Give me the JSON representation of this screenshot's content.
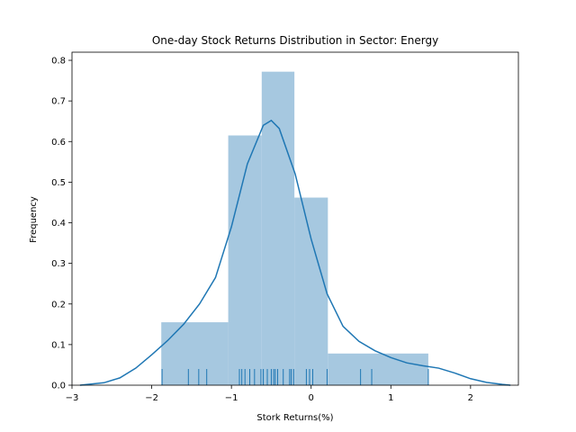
{
  "chart_data": {
    "type": "bar",
    "title": "One-day Stock Returns Distribution in Sector: Energy",
    "xlabel": "Stork Returns(%)",
    "ylabel": "Frequency",
    "xlim": [
      -3.0,
      2.6
    ],
    "ylim": [
      0,
      0.82
    ],
    "xticks": [
      -3,
      -2,
      -1,
      0,
      1,
      2
    ],
    "yticks": [
      0.0,
      0.1,
      0.2,
      0.3,
      0.4,
      0.5,
      0.6,
      0.7,
      0.8
    ],
    "grid": false,
    "histogram": {
      "bins": [
        {
          "x0": -1.88,
          "x1": -1.04,
          "value": 0.155
        },
        {
          "x0": -1.04,
          "x1": -0.62,
          "value": 0.615
        },
        {
          "x0": -0.62,
          "x1": -0.21,
          "value": 0.772
        },
        {
          "x0": -0.21,
          "x1": 0.21,
          "value": 0.462
        },
        {
          "x0": 0.21,
          "x1": 1.47,
          "value": 0.078
        }
      ],
      "color": "#a6c8e0"
    },
    "kde": {
      "color": "#1f77b4",
      "x": [
        -2.9,
        -2.6,
        -2.4,
        -2.2,
        -2.0,
        -1.8,
        -1.6,
        -1.4,
        -1.2,
        -1.0,
        -0.8,
        -0.6,
        -0.5,
        -0.4,
        -0.2,
        0.0,
        0.2,
        0.4,
        0.6,
        0.8,
        1.0,
        1.2,
        1.4,
        1.6,
        1.8,
        2.0,
        2.2,
        2.4,
        2.5
      ],
      "y": [
        0.0,
        0.006,
        0.018,
        0.042,
        0.075,
        0.11,
        0.15,
        0.2,
        0.265,
        0.39,
        0.545,
        0.64,
        0.652,
        0.632,
        0.52,
        0.36,
        0.225,
        0.145,
        0.108,
        0.085,
        0.068,
        0.055,
        0.048,
        0.042,
        0.03,
        0.016,
        0.007,
        0.002,
        0.0
      ]
    },
    "rug": {
      "color": "#1f77b4",
      "values": [
        -1.87,
        -1.54,
        -1.41,
        -1.31,
        -0.9,
        -0.87,
        -0.83,
        -0.77,
        -0.71,
        -0.63,
        -0.6,
        -0.55,
        -0.5,
        -0.47,
        -0.45,
        -0.42,
        -0.35,
        -0.27,
        -0.25,
        -0.22,
        -0.06,
        -0.02,
        0.02,
        0.2,
        0.62,
        0.76,
        1.47
      ]
    }
  }
}
